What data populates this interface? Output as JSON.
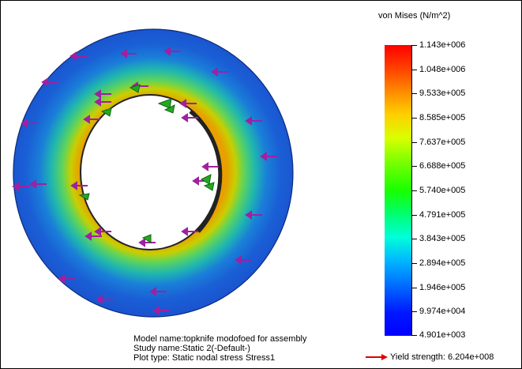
{
  "legend": {
    "title": "von Mises (N/m^2)",
    "ticks": [
      "1.143e+006",
      "1.048e+006",
      "9.533e+005",
      "8.585e+005",
      "7.637e+005",
      "6.688e+005",
      "5.740e+005",
      "4.791e+005",
      "3.843e+005",
      "2.894e+005",
      "1.946e+005",
      "9.974e+004",
      "4.901e+003"
    ]
  },
  "info": {
    "model_name": "Model name:topknife modofoed for assembly",
    "study_name": "Study name:Static 2(-Default-)",
    "plot_type": "Plot type: Static nodal stress Stress1"
  },
  "yield": {
    "label": "Yield strength: 6.204e+008",
    "arrow_color": "#e00000"
  },
  "colors": {
    "outer_ring": "#1a5fd6",
    "inner_stress": "#e3b300",
    "load_arrow": "#a020a0",
    "fixture": "#22aa22"
  },
  "icons": {
    "load_arrow": "load-arrow-icon",
    "fixture": "fixture-icon",
    "yield_arrow": "arrow-right-icon"
  }
}
